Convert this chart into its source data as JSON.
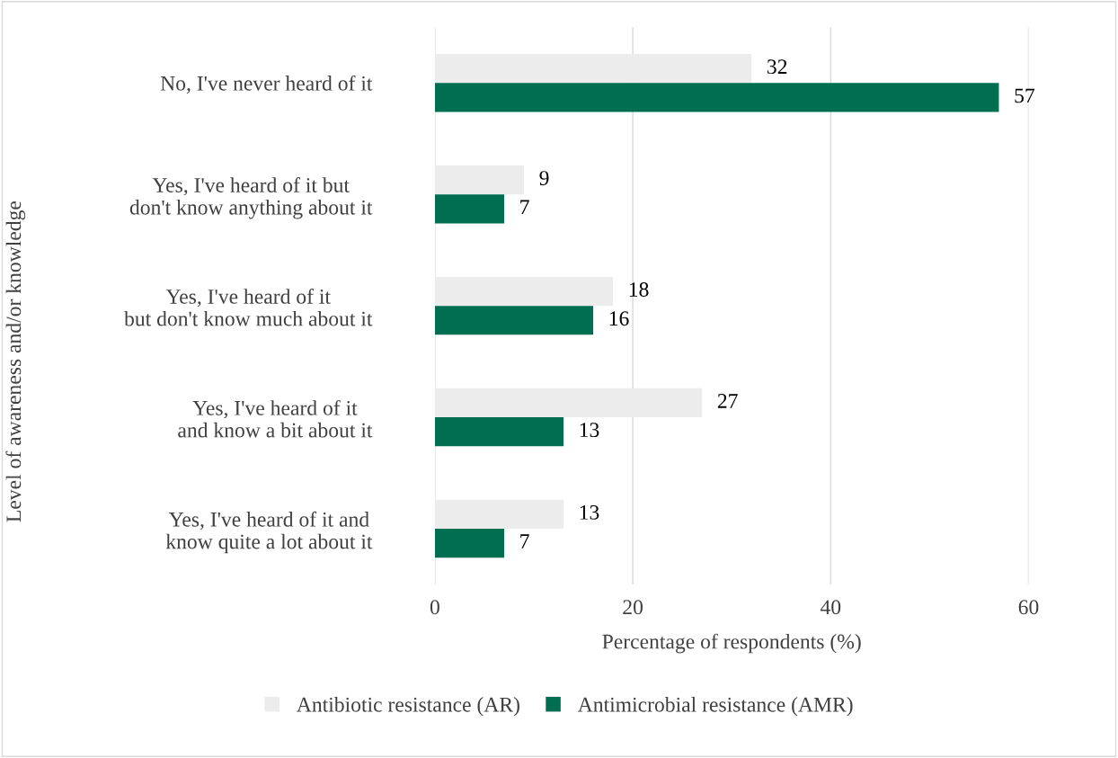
{
  "chart_data": {
    "type": "bar",
    "orientation": "horizontal",
    "categories": [
      "No, I've never heard of it",
      "Yes, I've heard of it but\ndon't know anything about it",
      "Yes, I've heard of it\nbut don't know much about it",
      "Yes, I've heard of it\nand know a bit about it",
      "Yes, I've heard of it and\nknow quite a lot about it"
    ],
    "series": [
      {
        "name": "Antibiotic resistance (AR)",
        "color": "#ececec",
        "values": [
          32,
          9,
          18,
          27,
          13
        ]
      },
      {
        "name": "Antimicrobial resistance (AMR)",
        "color": "#006f51",
        "values": [
          57,
          7,
          16,
          13,
          7
        ]
      }
    ],
    "xlim": [
      0,
      60
    ],
    "xticks": [
      0,
      20,
      40,
      60
    ],
    "xlabel": "Percentage of respondents (%)",
    "ylabel": "Level of awareness and/or knowledge",
    "data_labels": true,
    "grid": "x",
    "legend": "bottom"
  }
}
